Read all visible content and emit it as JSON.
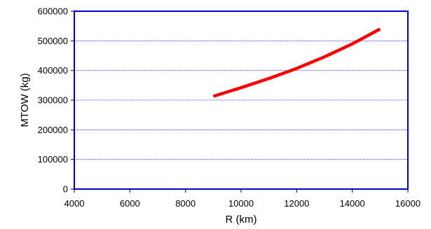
{
  "chart_data": {
    "type": "line",
    "xlabel": "R (km)",
    "ylabel": "MTOW (kg)",
    "xlim": [
      4000,
      16000
    ],
    "ylim": [
      0,
      600000
    ],
    "x_ticks": [
      "4000",
      "6000",
      "8000",
      "10000",
      "12000",
      "14000",
      "16000"
    ],
    "y_ticks": [
      "0",
      "100000",
      "200000",
      "300000",
      "400000",
      "500000",
      "600000"
    ],
    "grid": "horizontal dotted",
    "series": [
      {
        "color": "#ff0000",
        "x": [
          9000,
          10000,
          11000,
          12000,
          13000,
          14000,
          15000
        ],
        "y": [
          313000,
          342000,
          373000,
          407000,
          446000,
          490000,
          540000
        ]
      }
    ],
    "colors": {
      "plot_border": "#0000cc",
      "grid": "#3333cc"
    }
  }
}
